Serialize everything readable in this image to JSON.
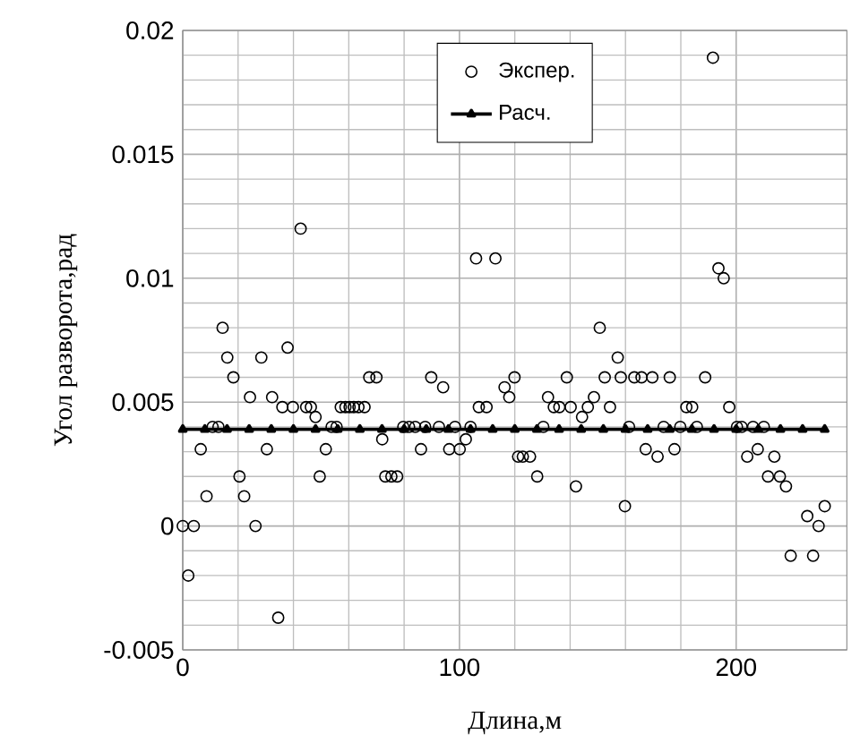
{
  "chart_data": {
    "type": "scatter",
    "xlabel": "Длина,м",
    "ylabel": "Угол разворота,рад",
    "xlim": [
      0,
      240
    ],
    "xticks": [
      0,
      100,
      200
    ],
    "ylim": [
      -0.005,
      0.02
    ],
    "yticks": [
      -0.005,
      0,
      0.005,
      0.01,
      0.015,
      0.02
    ],
    "grid": true,
    "legend": "top",
    "series": [
      {
        "name": "Экспер.",
        "marker": "circle",
        "color": "#000000",
        "x": [
          0,
          4,
          2,
          6.5,
          8.6,
          10.8,
          12.9,
          14.4,
          16.1,
          18.3,
          20.5,
          22.2,
          24.3,
          26.3,
          28.4,
          30.4,
          32.3,
          34.5,
          36,
          37.9,
          39.8,
          42.6,
          44.6,
          46.3,
          48,
          49.5,
          51.7,
          53.8,
          55.6,
          57.1,
          58.8,
          60.3,
          61.8,
          63.5,
          65.7,
          67.4,
          70,
          72.1,
          73.2,
          75.4,
          77.5,
          79.7,
          81.8,
          84,
          86.1,
          87.6,
          89.8,
          92.6,
          94.1,
          96.3,
          98.4,
          100.1,
          102.3,
          104,
          106,
          107,
          109.8,
          113,
          116.3,
          118,
          119.9,
          121.2,
          122.9,
          125.5,
          128.1,
          130.3,
          132,
          134.1,
          136.1,
          138.8,
          140.2,
          142.1,
          144.3,
          146.4,
          148.6,
          150.7,
          152.5,
          154.4,
          157.2,
          158.3,
          159.8,
          161.3,
          163.2,
          165.8,
          167.3,
          169.7,
          171.6,
          173.8,
          176,
          177.7,
          179.8,
          182,
          184.1,
          185.8,
          188.8,
          191.6,
          193.6,
          195.5,
          197.5,
          200.3,
          202,
          204,
          206.1,
          207.8,
          210,
          211.5,
          213.8,
          215.8,
          218,
          219.7,
          225.7,
          227.8,
          229.8,
          232
        ],
        "values": [
          0,
          0,
          -0.002,
          0.0031,
          0.0012,
          0.004,
          0.004,
          0.008,
          0.0068,
          0.006,
          0.002,
          0.0012,
          0.0052,
          0,
          0.0068,
          0.0031,
          0.0052,
          -0.0037,
          0.0048,
          0.0072,
          0.0048,
          0.012,
          0.0048,
          0.0048,
          0.0044,
          0.002,
          0.0031,
          0.004,
          0.004,
          0.0048,
          0.0048,
          0.0048,
          0.0048,
          0.0048,
          0.0048,
          0.006,
          0.006,
          0.0035,
          0.002,
          0.002,
          0.002,
          0.004,
          0.004,
          0.004,
          0.0031,
          0.004,
          0.006,
          0.004,
          0.0056,
          0.0031,
          0.004,
          0.0031,
          0.0035,
          0.004,
          0.0108,
          0.0048,
          0.0048,
          0.0108,
          0.0056,
          0.0052,
          0.006,
          0.0028,
          0.0028,
          0.0028,
          0.002,
          0.004,
          0.0052,
          0.0048,
          0.0048,
          0.006,
          0.0048,
          0.0016,
          0.0044,
          0.0048,
          0.0052,
          0.008,
          0.006,
          0.0048,
          0.0068,
          0.006,
          0.0008,
          0.004,
          0.006,
          0.006,
          0.0031,
          0.006,
          0.0028,
          0.004,
          0.006,
          0.0031,
          0.004,
          0.0048,
          0.0048,
          0.004,
          0.006,
          0.0189,
          0.0104,
          0.01,
          0.0048,
          0.004,
          0.004,
          0.0028,
          0.004,
          0.0031,
          0.004,
          0.002,
          0.0028,
          0.002,
          0.0016,
          -0.0012,
          0.0004,
          -0.0012,
          0,
          0.0008
        ]
      },
      {
        "name": "Расч.",
        "type": "line",
        "marker": "triangle",
        "line_style": "solid",
        "color": "#000000",
        "x": [
          0,
          8,
          16,
          24,
          32,
          40,
          48,
          56,
          64,
          72,
          80,
          88,
          96,
          104,
          112,
          120,
          128,
          136,
          144,
          152,
          160,
          168,
          176,
          184,
          192,
          200,
          208,
          216,
          224,
          232
        ],
        "values": [
          0.0039,
          0.0039,
          0.0039,
          0.0039,
          0.0039,
          0.0039,
          0.0039,
          0.0039,
          0.0039,
          0.0039,
          0.0039,
          0.0039,
          0.0039,
          0.0039,
          0.0039,
          0.0039,
          0.0039,
          0.0039,
          0.0039,
          0.0039,
          0.0039,
          0.0039,
          0.0039,
          0.0039,
          0.0039,
          0.0039,
          0.0039,
          0.0039,
          0.0039,
          0.0039
        ]
      }
    ]
  }
}
